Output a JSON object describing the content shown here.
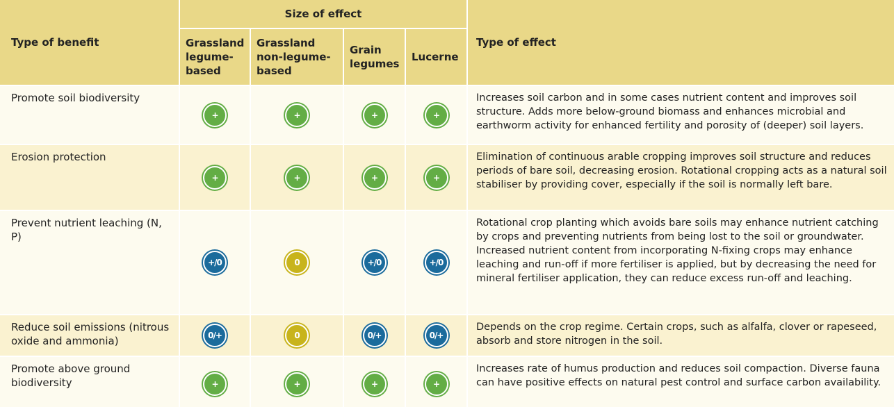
{
  "header": {
    "first": "Type of benefit",
    "group": "Size of effect",
    "columns": [
      "Grassland legume-based",
      "Grassland non-legume-based",
      "Grain legumes",
      "Lucerne"
    ],
    "last": "Type of effect"
  },
  "rows": [
    {
      "benefit": "Promote soil biodiversity",
      "effects": [
        {
          "symbol": "+",
          "color": "#63ad45"
        },
        {
          "symbol": "+",
          "color": "#63ad45"
        },
        {
          "symbol": "+",
          "color": "#63ad45"
        },
        {
          "symbol": "+",
          "color": "#63ad45"
        }
      ],
      "description": "Increases soil carbon and in some cases nutrient content and improves soil structure. Adds more below-ground biomass and enhances microbial and earthworm activity for enhanced fertility and porosity of (deeper) soil layers."
    },
    {
      "benefit": "Erosion protection",
      "effects": [
        {
          "symbol": "+",
          "color": "#63ad45"
        },
        {
          "symbol": "+",
          "color": "#63ad45"
        },
        {
          "symbol": "+",
          "color": "#63ad45"
        },
        {
          "symbol": "+",
          "color": "#63ad45"
        }
      ],
      "description": "Elimination of continuous arable cropping improves soil structure and reduces periods of bare soil, decreasing erosion. Rotational cropping acts as a natural soil stabiliser by providing cover, especially if the soil is normally left bare."
    },
    {
      "benefit": "Prevent nutrient leaching (N, P)",
      "effects": [
        {
          "symbol": "+/0",
          "color": "#1b6b9c"
        },
        {
          "symbol": "0",
          "color": "#c8b41c"
        },
        {
          "symbol": "+/0",
          "color": "#1b6b9c"
        },
        {
          "symbol": "+/0",
          "color": "#1b6b9c"
        }
      ],
      "description": "Rotational crop planting which avoids bare soils may enhance nutrient catching by crops and preventing nutrients from being lost to the soil or groundwater. Increased nutrient content from incorporating N-fixing crops may enhance leaching and run-off if more fertiliser is applied, but by decreasing the need for mineral fertiliser application, they can reduce excess run-off and leaching."
    },
    {
      "benefit": "Reduce soil emissions (nitrous oxide and ammonia)",
      "effects": [
        {
          "symbol": "0/+",
          "color": "#1b6b9c"
        },
        {
          "symbol": "0",
          "color": "#c8b41c"
        },
        {
          "symbol": "0/+",
          "color": "#1b6b9c"
        },
        {
          "symbol": "0/+",
          "color": "#1b6b9c"
        }
      ],
      "description": "Depends on the crop regime. Certain crops, such as alfalfa, clover or rapeseed, absorb and store nitrogen in the soil."
    },
    {
      "benefit": "Promote above ground biodiversity",
      "effects": [
        {
          "symbol": "+",
          "color": "#63ad45"
        },
        {
          "symbol": "+",
          "color": "#63ad45"
        },
        {
          "symbol": "+",
          "color": "#63ad45"
        },
        {
          "symbol": "+",
          "color": "#63ad45"
        }
      ],
      "description": "Increases rate of humus production and reduces soil compaction. Diverse fauna can have positive effects on natural pest control and surface carbon availability."
    }
  ]
}
